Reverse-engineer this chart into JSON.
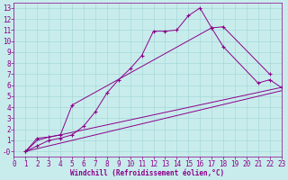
{
  "xlabel": "Windchill (Refroidissement éolien,°C)",
  "xlim": [
    0,
    23
  ],
  "ylim": [
    -0.5,
    13.5
  ],
  "bg_color": "#c8ecec",
  "line_color": "#8b008b",
  "grid_color": "#a8d8d8",
  "series": [
    {
      "x": [
        1,
        2,
        3,
        4,
        5,
        6,
        7,
        8,
        9,
        10,
        11,
        12,
        13,
        14,
        15,
        16,
        17,
        18,
        22
      ],
      "y": [
        0,
        0.5,
        1.0,
        1.2,
        1.5,
        2.3,
        3.6,
        5.3,
        6.5,
        7.5,
        8.7,
        10.9,
        10.9,
        11.0,
        12.3,
        13.0,
        11.2,
        11.3,
        7.0
      ],
      "marker": "+"
    },
    {
      "x": [
        1,
        2,
        3,
        4,
        5,
        17,
        18,
        21,
        22,
        23
      ],
      "y": [
        0,
        1.2,
        1.3,
        1.5,
        4.2,
        11.2,
        9.5,
        6.2,
        6.5,
        5.8
      ],
      "marker": "+"
    },
    {
      "x": [
        1,
        2,
        3,
        4,
        23
      ],
      "y": [
        0,
        1.0,
        1.3,
        1.5,
        5.8
      ],
      "marker": null
    },
    {
      "x": [
        1,
        23
      ],
      "y": [
        0,
        5.5
      ],
      "marker": null
    }
  ],
  "yticks": [
    0,
    1,
    2,
    3,
    4,
    5,
    6,
    7,
    8,
    9,
    10,
    11,
    12,
    13
  ],
  "ytick_labels": [
    "-0",
    "1",
    "2",
    "3",
    "4",
    "5",
    "6",
    "7",
    "8",
    "9",
    "10",
    "11",
    "12",
    "13"
  ],
  "xticks": [
    0,
    1,
    2,
    3,
    4,
    5,
    6,
    7,
    8,
    9,
    10,
    11,
    12,
    13,
    14,
    15,
    16,
    17,
    18,
    19,
    20,
    21,
    22,
    23
  ],
  "font_family": "monospace",
  "label_fontsize": 5.5,
  "tick_fontsize": 5.5
}
